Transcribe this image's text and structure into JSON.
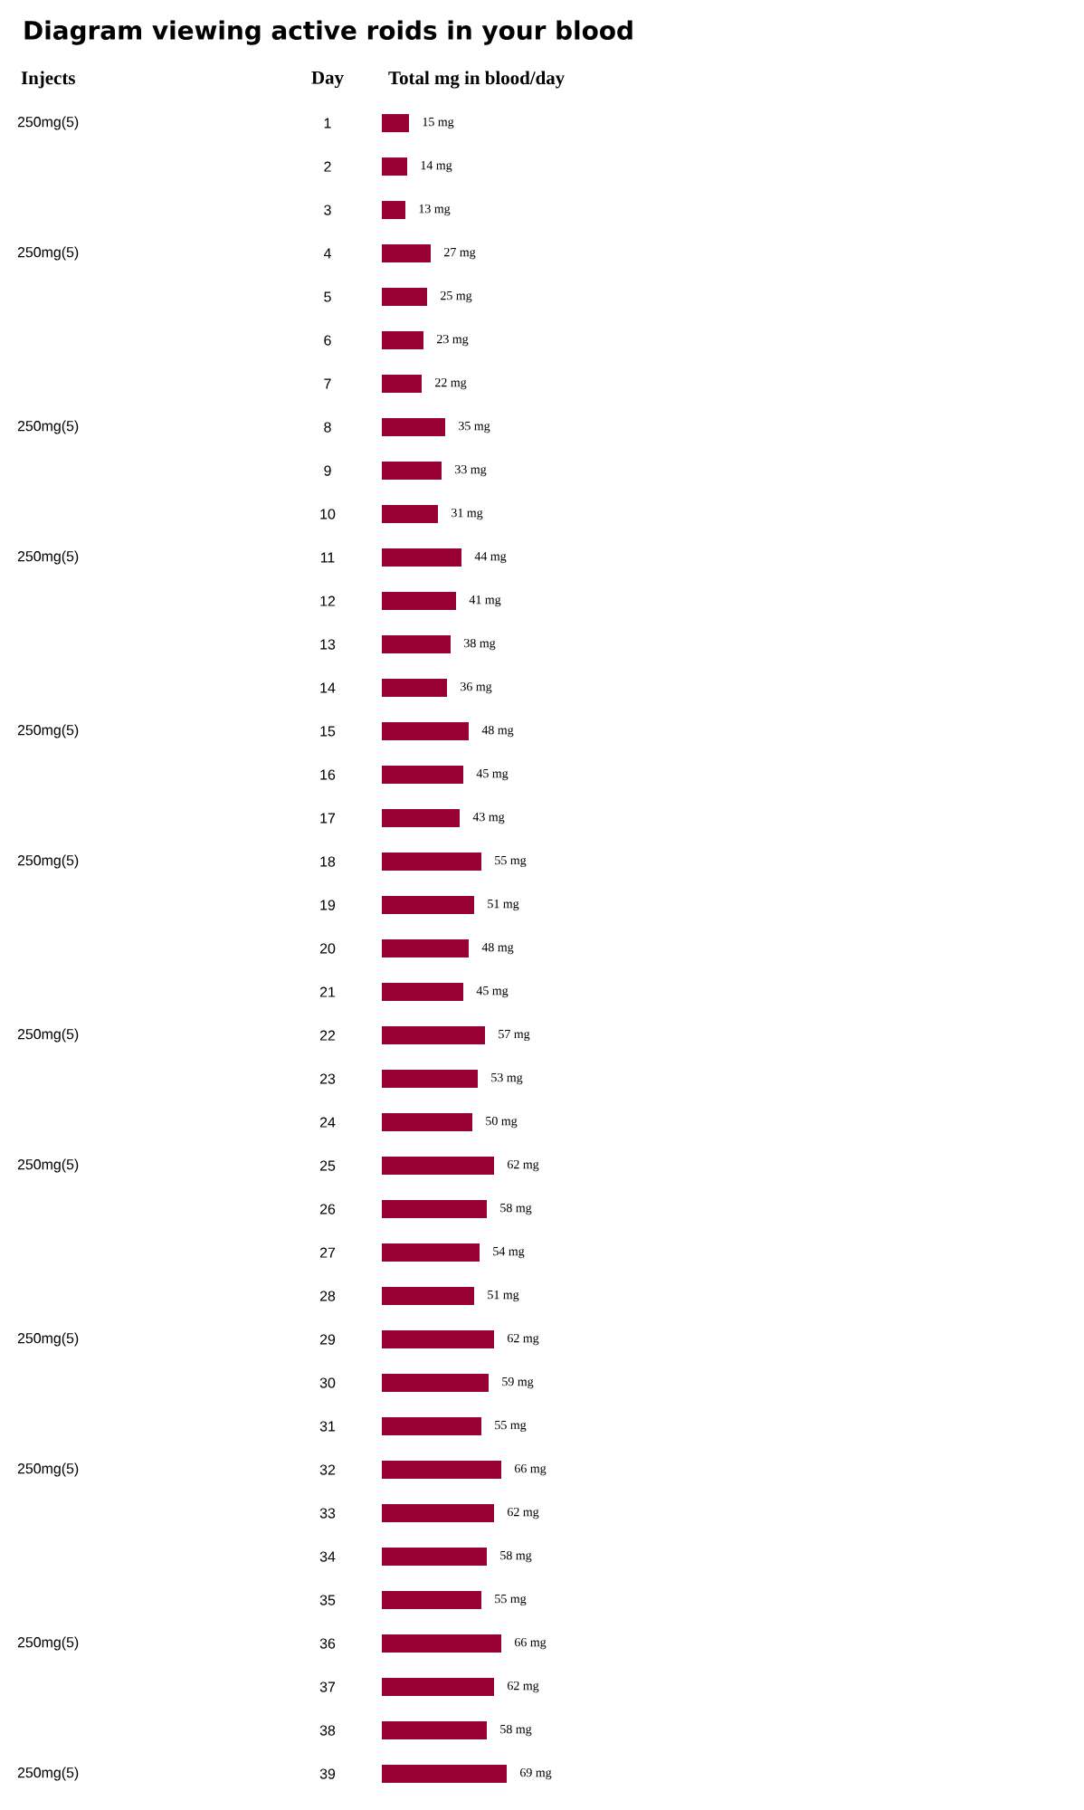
{
  "chart_data": {
    "type": "bar",
    "orientation": "horizontal",
    "title": "Diagram viewing active roids in your blood",
    "xlabel": "Total mg in blood/day",
    "ylabel": "Day",
    "categories": [
      "1",
      "2",
      "3",
      "4",
      "5",
      "6",
      "7",
      "8",
      "9",
      "10",
      "11",
      "12",
      "13",
      "14",
      "15",
      "16",
      "17",
      "18",
      "19",
      "20",
      "21",
      "22",
      "23",
      "24",
      "25",
      "26",
      "27",
      "28",
      "29",
      "30",
      "31",
      "32",
      "33",
      "34",
      "35",
      "36",
      "37",
      "38",
      "39"
    ],
    "values": [
      15,
      14,
      13,
      27,
      25,
      23,
      22,
      35,
      33,
      31,
      44,
      41,
      38,
      36,
      48,
      45,
      43,
      55,
      51,
      48,
      45,
      57,
      53,
      50,
      62,
      58,
      54,
      51,
      62,
      59,
      55,
      66,
      62,
      58,
      55,
      66,
      62,
      58,
      69
    ],
    "value_labels": [
      "15 mg",
      "14 mg",
      "13 mg",
      "27 mg",
      "25 mg",
      "23 mg",
      "22 mg",
      "35 mg",
      "33 mg",
      "31 mg",
      "44 mg",
      "41 mg",
      "38 mg",
      "36 mg",
      "48 mg",
      "45 mg",
      "43 mg",
      "55 mg",
      "51 mg",
      "48 mg",
      "45 mg",
      "57 mg",
      "53 mg",
      "50 mg",
      "62 mg",
      "58 mg",
      "54 mg",
      "51 mg",
      "62 mg",
      "59 mg",
      "55 mg",
      "66 mg",
      "62 mg",
      "58 mg",
      "55 mg",
      "66 mg",
      "62 mg",
      "58 mg",
      "69 mg"
    ],
    "color": "#990033",
    "tick_labels": "y",
    "annotations": [
      "Injects",
      "250mg(5)",
      "250mg(5)",
      "250mg(5)",
      "250mg(5)",
      "250mg(5)",
      "250mg(5)",
      "250mg(5)",
      "250mg(5)",
      "250mg(5)",
      "250mg(5)",
      "250mg(5)",
      "250mg(5)"
    ]
  }
}
